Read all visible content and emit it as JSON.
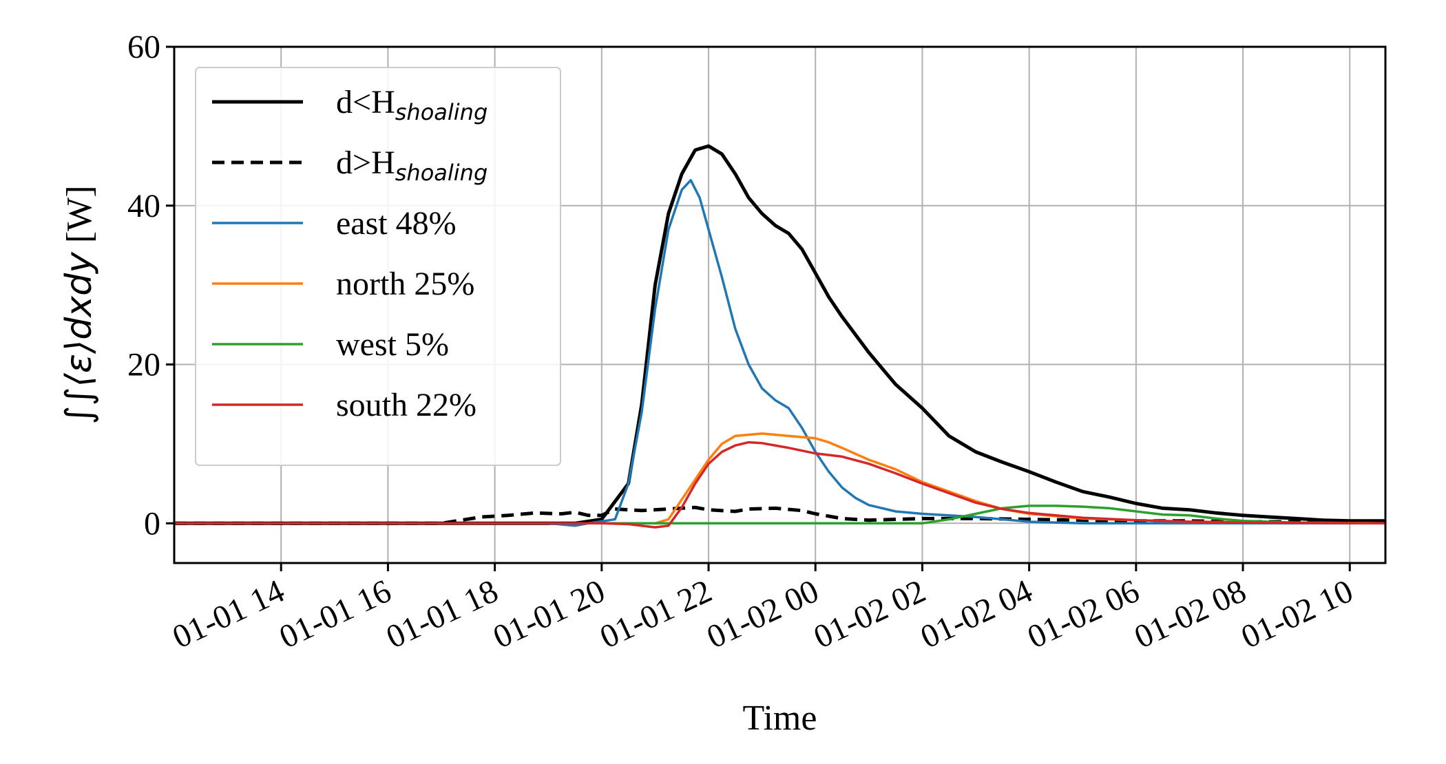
{
  "chart_data": {
    "type": "line",
    "xlabel": "Time",
    "ylabel": {
      "math": "∫∫⟨ε⟩dxdy",
      "unit": " [W]"
    },
    "ylim": [
      -5,
      60
    ],
    "yticks": [
      0,
      20,
      40,
      60
    ],
    "xlim": [
      "2024-01-01T12:00",
      "2024-01-02T10:40"
    ],
    "xticks": [
      "01-01 14",
      "01-01 16",
      "01-01 18",
      "01-01 20",
      "01-01 22",
      "01-02 00",
      "01-02 02",
      "01-02 04",
      "01-02 06",
      "01-02 08",
      "01-02 10"
    ],
    "grid": true,
    "legend_position": "top-left",
    "series": [
      {
        "label_main": "d<H",
        "label_sub": "shoaling",
        "color": "#000000",
        "style": "solid",
        "width": 5,
        "points": [
          [
            "2024-01-01T12:00",
            0
          ],
          [
            "2024-01-01T17:00",
            0
          ],
          [
            "2024-01-01T19:30",
            0
          ],
          [
            "2024-01-01T20:00",
            0.5
          ],
          [
            "2024-01-01T20:30",
            5
          ],
          [
            "2024-01-01T20:45",
            15
          ],
          [
            "2024-01-01T21:00",
            30
          ],
          [
            "2024-01-01T21:15",
            39
          ],
          [
            "2024-01-01T21:30",
            44
          ],
          [
            "2024-01-01T21:45",
            47
          ],
          [
            "2024-01-01T22:00",
            47.5
          ],
          [
            "2024-01-01T22:15",
            46.5
          ],
          [
            "2024-01-01T22:30",
            44
          ],
          [
            "2024-01-01T22:45",
            41
          ],
          [
            "2024-01-01T23:00",
            39
          ],
          [
            "2024-01-01T23:15",
            37.5
          ],
          [
            "2024-01-01T23:30",
            36.5
          ],
          [
            "2024-01-01T23:45",
            34.5
          ],
          [
            "2024-01-02T00:00",
            31.5
          ],
          [
            "2024-01-02T00:15",
            28.5
          ],
          [
            "2024-01-02T00:30",
            26
          ],
          [
            "2024-01-02T01:00",
            21.5
          ],
          [
            "2024-01-02T01:30",
            17.5
          ],
          [
            "2024-01-02T02:00",
            14.5
          ],
          [
            "2024-01-02T02:30",
            11
          ],
          [
            "2024-01-02T03:00",
            9
          ],
          [
            "2024-01-02T03:30",
            7.7
          ],
          [
            "2024-01-02T04:00",
            6.5
          ],
          [
            "2024-01-02T04:30",
            5.2
          ],
          [
            "2024-01-02T05:00",
            4
          ],
          [
            "2024-01-02T05:30",
            3.3
          ],
          [
            "2024-01-02T06:00",
            2.5
          ],
          [
            "2024-01-02T06:30",
            1.9
          ],
          [
            "2024-01-02T07:00",
            1.7
          ],
          [
            "2024-01-02T07:30",
            1.3
          ],
          [
            "2024-01-02T08:00",
            1
          ],
          [
            "2024-01-02T08:30",
            0.8
          ],
          [
            "2024-01-02T09:00",
            0.6
          ],
          [
            "2024-01-02T09:30",
            0.4
          ],
          [
            "2024-01-02T10:00",
            0.3
          ],
          [
            "2024-01-02T10:40",
            0.3
          ]
        ]
      },
      {
        "label_main": "d>H",
        "label_sub": "shoaling",
        "color": "#000000",
        "style": "dashed",
        "width": 5,
        "points": [
          [
            "2024-01-01T12:00",
            0
          ],
          [
            "2024-01-01T17:00",
            0
          ],
          [
            "2024-01-01T17:45",
            0.8
          ],
          [
            "2024-01-01T18:15",
            1
          ],
          [
            "2024-01-01T18:45",
            1.3
          ],
          [
            "2024-01-01T19:15",
            1.2
          ],
          [
            "2024-01-01T19:30",
            1.4
          ],
          [
            "2024-01-01T19:45",
            1
          ],
          [
            "2024-01-01T20:00",
            1
          ],
          [
            "2024-01-01T20:15",
            1.8
          ],
          [
            "2024-01-01T20:45",
            1.6
          ],
          [
            "2024-01-01T21:15",
            1.8
          ],
          [
            "2024-01-01T21:45",
            2
          ],
          [
            "2024-01-01T22:00",
            1.7
          ],
          [
            "2024-01-01T22:30",
            1.5
          ],
          [
            "2024-01-01T22:45",
            1.8
          ],
          [
            "2024-01-01T23:15",
            1.9
          ],
          [
            "2024-01-01T23:45",
            1.6
          ],
          [
            "2024-01-02T00:00",
            1.2
          ],
          [
            "2024-01-02T00:30",
            0.6
          ],
          [
            "2024-01-02T01:00",
            0.4
          ],
          [
            "2024-01-02T02:00",
            0.6
          ],
          [
            "2024-01-02T03:00",
            0.6
          ],
          [
            "2024-01-02T04:00",
            0.5
          ],
          [
            "2024-01-02T05:00",
            0.4
          ],
          [
            "2024-01-02T06:00",
            0.3
          ],
          [
            "2024-01-02T07:00",
            0.3
          ],
          [
            "2024-01-02T08:00",
            0.2
          ],
          [
            "2024-01-02T10:40",
            0.2
          ]
        ]
      },
      {
        "label": "east 48%",
        "color": "#1f77b4",
        "style": "solid",
        "width": 3.5,
        "points": [
          [
            "2024-01-01T12:00",
            0
          ],
          [
            "2024-01-01T19:00",
            0
          ],
          [
            "2024-01-01T19:30",
            -0.3
          ],
          [
            "2024-01-01T19:45",
            0
          ],
          [
            "2024-01-01T20:15",
            0.5
          ],
          [
            "2024-01-01T20:30",
            5
          ],
          [
            "2024-01-01T20:45",
            14
          ],
          [
            "2024-01-01T21:00",
            27
          ],
          [
            "2024-01-01T21:15",
            37
          ],
          [
            "2024-01-01T21:30",
            42
          ],
          [
            "2024-01-01T21:40",
            43.2
          ],
          [
            "2024-01-01T21:50",
            41
          ],
          [
            "2024-01-01T22:00",
            37
          ],
          [
            "2024-01-01T22:15",
            31
          ],
          [
            "2024-01-01T22:30",
            24.5
          ],
          [
            "2024-01-01T22:45",
            20
          ],
          [
            "2024-01-01T23:00",
            17
          ],
          [
            "2024-01-01T23:15",
            15.5
          ],
          [
            "2024-01-01T23:30",
            14.5
          ],
          [
            "2024-01-01T23:45",
            12
          ],
          [
            "2024-01-02T00:00",
            9
          ],
          [
            "2024-01-02T00:15",
            6.5
          ],
          [
            "2024-01-02T00:30",
            4.5
          ],
          [
            "2024-01-02T00:45",
            3.2
          ],
          [
            "2024-01-02T01:00",
            2.3
          ],
          [
            "2024-01-02T01:30",
            1.5
          ],
          [
            "2024-01-02T02:00",
            1.2
          ],
          [
            "2024-01-02T02:30",
            1
          ],
          [
            "2024-01-02T03:00",
            0.8
          ],
          [
            "2024-01-02T03:30",
            0.5
          ],
          [
            "2024-01-02T04:00",
            0.2
          ],
          [
            "2024-01-02T05:00",
            0
          ],
          [
            "2024-01-02T10:40",
            0
          ]
        ]
      },
      {
        "label": "north 25%",
        "color": "#ff7f0e",
        "style": "solid",
        "width": 3.5,
        "points": [
          [
            "2024-01-01T12:00",
            0
          ],
          [
            "2024-01-01T21:00",
            0
          ],
          [
            "2024-01-01T21:15",
            0.5
          ],
          [
            "2024-01-01T21:30",
            3
          ],
          [
            "2024-01-01T21:45",
            5.5
          ],
          [
            "2024-01-01T22:00",
            8
          ],
          [
            "2024-01-01T22:15",
            10
          ],
          [
            "2024-01-01T22:30",
            11
          ],
          [
            "2024-01-01T23:00",
            11.3
          ],
          [
            "2024-01-01T23:30",
            11
          ],
          [
            "2024-01-02T00:00",
            10.7
          ],
          [
            "2024-01-02T00:15",
            10.2
          ],
          [
            "2024-01-02T00:30",
            9.5
          ],
          [
            "2024-01-02T01:00",
            8
          ],
          [
            "2024-01-02T01:30",
            6.8
          ],
          [
            "2024-01-02T02:00",
            5.2
          ],
          [
            "2024-01-02T02:30",
            4
          ],
          [
            "2024-01-02T03:00",
            2.8
          ],
          [
            "2024-01-02T03:30",
            1.8
          ],
          [
            "2024-01-02T04:00",
            1.2
          ],
          [
            "2024-01-02T05:00",
            0.6
          ],
          [
            "2024-01-02T06:00",
            0.4
          ],
          [
            "2024-01-02T07:00",
            0.2
          ],
          [
            "2024-01-02T10:40",
            0
          ]
        ]
      },
      {
        "label": "west 5%",
        "color": "#2ca02c",
        "style": "solid",
        "width": 3.5,
        "points": [
          [
            "2024-01-01T12:00",
            0
          ],
          [
            "2024-01-02T02:00",
            0
          ],
          [
            "2024-01-02T02:30",
            0.5
          ],
          [
            "2024-01-02T03:00",
            1.2
          ],
          [
            "2024-01-02T03:30",
            1.9
          ],
          [
            "2024-01-02T04:00",
            2.2
          ],
          [
            "2024-01-02T04:30",
            2.2
          ],
          [
            "2024-01-02T05:00",
            2.1
          ],
          [
            "2024-01-02T05:30",
            1.9
          ],
          [
            "2024-01-02T06:00",
            1.5
          ],
          [
            "2024-01-02T06:30",
            1.1
          ],
          [
            "2024-01-02T07:00",
            1
          ],
          [
            "2024-01-02T07:30",
            0.6
          ],
          [
            "2024-01-02T08:00",
            0.3
          ],
          [
            "2024-01-02T09:00",
            0.1
          ],
          [
            "2024-01-02T10:40",
            0
          ]
        ]
      },
      {
        "label": "south 22%",
        "color": "#d62728",
        "style": "solid",
        "width": 3.5,
        "points": [
          [
            "2024-01-01T12:00",
            0
          ],
          [
            "2024-01-01T20:00",
            0
          ],
          [
            "2024-01-01T20:30",
            -0.1
          ],
          [
            "2024-01-01T21:00",
            -0.5
          ],
          [
            "2024-01-01T21:15",
            -0.3
          ],
          [
            "2024-01-01T21:30",
            2
          ],
          [
            "2024-01-01T21:45",
            5
          ],
          [
            "2024-01-01T22:00",
            7.5
          ],
          [
            "2024-01-01T22:15",
            9
          ],
          [
            "2024-01-01T22:30",
            9.8
          ],
          [
            "2024-01-01T22:45",
            10.2
          ],
          [
            "2024-01-01T23:00",
            10.1
          ],
          [
            "2024-01-01T23:30",
            9.5
          ],
          [
            "2024-01-02T00:00",
            8.8
          ],
          [
            "2024-01-02T00:30",
            8.4
          ],
          [
            "2024-01-02T01:00",
            7.5
          ],
          [
            "2024-01-02T01:30",
            6.3
          ],
          [
            "2024-01-02T02:00",
            5
          ],
          [
            "2024-01-02T02:30",
            3.8
          ],
          [
            "2024-01-02T03:00",
            2.6
          ],
          [
            "2024-01-02T03:30",
            1.8
          ],
          [
            "2024-01-02T04:00",
            1.3
          ],
          [
            "2024-01-02T05:00",
            0.7
          ],
          [
            "2024-01-02T06:00",
            0.4
          ],
          [
            "2024-01-02T07:00",
            0.2
          ],
          [
            "2024-01-02T08:00",
            0.1
          ],
          [
            "2024-01-02T10:40",
            0
          ]
        ]
      }
    ]
  }
}
